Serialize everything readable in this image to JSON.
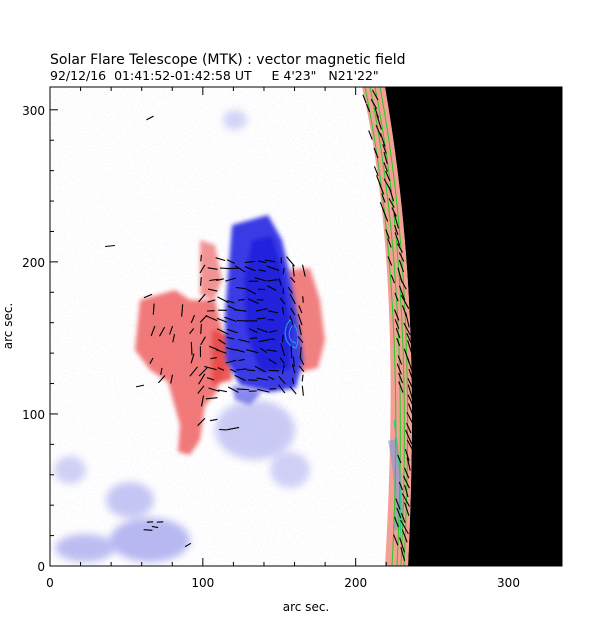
{
  "header": {
    "title": "Solar Flare Telescope (MTK) : vector magnetic field",
    "subtitle": "92/12/16  01:41:52-01:42:58 UT     E 4'23\"   N21'22\""
  },
  "axes": {
    "xlabel": "arc sec.",
    "ylabel": "arc sec.",
    "xlim": [
      0,
      335
    ],
    "ylim": [
      0,
      315
    ],
    "xticks": [
      0,
      100,
      200,
      300
    ],
    "yticks": [
      0,
      100,
      200,
      300
    ]
  },
  "colors": {
    "positive_polarity": "#ef5a5a",
    "negative_polarity": "#3a3ae6",
    "off_limb": "#000000",
    "contour_green": "#22cc22",
    "contour_cyan": "#22aacc",
    "vectors": "#000000"
  }
}
